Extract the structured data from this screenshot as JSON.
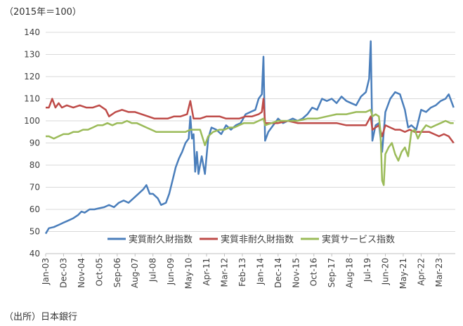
{
  "unit_label": "（2015年＝100）",
  "source_label": "（出所）日本銀行",
  "chart_data": {
    "type": "line",
    "ylim": [
      40,
      140
    ],
    "yticks": [
      40,
      50,
      60,
      70,
      80,
      90,
      100,
      110,
      120,
      130,
      140
    ],
    "x_start": "2003-01",
    "x_end": "2023-12",
    "x_tick_labels": [
      "Jan-03",
      "Dec-03",
      "Nov-04",
      "Oct-05",
      "Sep-06",
      "Aug-07",
      "Jul-08",
      "Jun-09",
      "May-10",
      "Apr-11",
      "Mar-12",
      "Feb-13",
      "Jan-14",
      "Dec-14",
      "Nov-15",
      "Oct-16",
      "Sep-17",
      "Aug-18",
      "Jul-19",
      "Jun-20",
      "May-21",
      "Apr-22",
      "Mar-23"
    ],
    "grid": "horizontal",
    "legend_position": "bottom-right-inside",
    "series": [
      {
        "name": "実質耐久財指数",
        "color": "#4a7ebb",
        "points": [
          [
            "2003-01",
            49
          ],
          [
            "2003-03",
            51.5
          ],
          [
            "2003-06",
            52
          ],
          [
            "2003-09",
            53
          ],
          [
            "2003-12",
            54
          ],
          [
            "2004-03",
            55
          ],
          [
            "2004-06",
            56
          ],
          [
            "2004-09",
            57.5
          ],
          [
            "2004-11",
            59
          ],
          [
            "2005-01",
            58.5
          ],
          [
            "2005-04",
            60
          ],
          [
            "2005-07",
            60
          ],
          [
            "2005-10",
            60.5
          ],
          [
            "2006-01",
            61
          ],
          [
            "2006-04",
            62
          ],
          [
            "2006-07",
            61
          ],
          [
            "2006-10",
            63
          ],
          [
            "2007-01",
            64
          ],
          [
            "2007-04",
            63
          ],
          [
            "2007-07",
            65
          ],
          [
            "2007-10",
            67
          ],
          [
            "2008-01",
            69
          ],
          [
            "2008-03",
            71
          ],
          [
            "2008-05",
            67
          ],
          [
            "2008-07",
            67
          ],
          [
            "2008-10",
            65
          ],
          [
            "2008-12",
            62
          ],
          [
            "2009-03",
            63
          ],
          [
            "2009-05",
            67
          ],
          [
            "2009-07",
            73
          ],
          [
            "2009-09",
            79
          ],
          [
            "2009-11",
            83
          ],
          [
            "2010-01",
            86
          ],
          [
            "2010-03",
            90
          ],
          [
            "2010-05",
            92
          ],
          [
            "2010-06",
            102
          ],
          [
            "2010-07",
            92
          ],
          [
            "2010-08",
            94
          ],
          [
            "2010-09",
            77
          ],
          [
            "2010-10",
            86
          ],
          [
            "2010-11",
            76
          ],
          [
            "2011-01",
            84
          ],
          [
            "2011-03",
            76
          ],
          [
            "2011-05",
            92
          ],
          [
            "2011-07",
            97
          ],
          [
            "2011-10",
            96
          ],
          [
            "2012-01",
            94
          ],
          [
            "2012-04",
            98
          ],
          [
            "2012-07",
            96
          ],
          [
            "2012-10",
            98
          ],
          [
            "2013-01",
            99
          ],
          [
            "2013-04",
            103
          ],
          [
            "2013-07",
            104
          ],
          [
            "2013-10",
            105
          ],
          [
            "2013-12",
            110
          ],
          [
            "2014-02",
            112
          ],
          [
            "2014-03",
            129
          ],
          [
            "2014-04",
            91
          ],
          [
            "2014-06",
            95
          ],
          [
            "2014-09",
            98
          ],
          [
            "2014-12",
            101
          ],
          [
            "2015-03",
            99
          ],
          [
            "2015-06",
            100
          ],
          [
            "2015-09",
            101
          ],
          [
            "2015-12",
            100
          ],
          [
            "2016-03",
            101
          ],
          [
            "2016-06",
            103
          ],
          [
            "2016-09",
            106
          ],
          [
            "2016-12",
            105
          ],
          [
            "2017-03",
            110
          ],
          [
            "2017-06",
            109
          ],
          [
            "2017-09",
            110
          ],
          [
            "2017-12",
            108
          ],
          [
            "2018-03",
            111
          ],
          [
            "2018-06",
            109
          ],
          [
            "2018-09",
            108
          ],
          [
            "2018-12",
            107
          ],
          [
            "2019-03",
            111
          ],
          [
            "2019-06",
            113
          ],
          [
            "2019-08",
            119
          ],
          [
            "2019-09",
            136
          ],
          [
            "2019-10",
            91
          ],
          [
            "2019-12",
            98
          ],
          [
            "2020-02",
            99
          ],
          [
            "2020-04",
            86
          ],
          [
            "2020-06",
            104
          ],
          [
            "2020-09",
            110
          ],
          [
            "2020-12",
            113
          ],
          [
            "2021-03",
            112
          ],
          [
            "2021-06",
            105
          ],
          [
            "2021-08",
            97
          ],
          [
            "2021-10",
            98
          ],
          [
            "2022-01",
            96
          ],
          [
            "2022-04",
            105
          ],
          [
            "2022-07",
            104
          ],
          [
            "2022-10",
            106
          ],
          [
            "2023-01",
            107
          ],
          [
            "2023-04",
            109
          ],
          [
            "2023-07",
            110
          ],
          [
            "2023-09",
            112
          ],
          [
            "2023-12",
            106
          ]
        ]
      },
      {
        "name": "実質非耐久財指数",
        "color": "#be4b48",
        "points": [
          [
            "2003-01",
            106
          ],
          [
            "2003-03",
            106
          ],
          [
            "2003-05",
            110
          ],
          [
            "2003-07",
            106
          ],
          [
            "2003-09",
            108
          ],
          [
            "2003-11",
            106
          ],
          [
            "2004-02",
            107
          ],
          [
            "2004-06",
            106
          ],
          [
            "2004-10",
            107
          ],
          [
            "2005-02",
            106
          ],
          [
            "2005-06",
            106
          ],
          [
            "2005-10",
            107
          ],
          [
            "2006-02",
            105
          ],
          [
            "2006-04",
            102
          ],
          [
            "2006-08",
            104
          ],
          [
            "2006-12",
            105
          ],
          [
            "2007-04",
            104
          ],
          [
            "2007-08",
            104
          ],
          [
            "2007-12",
            103
          ],
          [
            "2008-04",
            102
          ],
          [
            "2008-08",
            101
          ],
          [
            "2008-12",
            101
          ],
          [
            "2009-04",
            101
          ],
          [
            "2009-08",
            102
          ],
          [
            "2009-12",
            102
          ],
          [
            "2010-04",
            103
          ],
          [
            "2010-06",
            109
          ],
          [
            "2010-08",
            101
          ],
          [
            "2010-12",
            101
          ],
          [
            "2011-04",
            102
          ],
          [
            "2011-08",
            102
          ],
          [
            "2011-12",
            102
          ],
          [
            "2012-04",
            101
          ],
          [
            "2012-08",
            101
          ],
          [
            "2012-12",
            101
          ],
          [
            "2013-04",
            102
          ],
          [
            "2013-08",
            102
          ],
          [
            "2013-12",
            103
          ],
          [
            "2014-02",
            104
          ],
          [
            "2014-03",
            110
          ],
          [
            "2014-04",
            99
          ],
          [
            "2014-08",
            99
          ],
          [
            "2014-12",
            99
          ],
          [
            "2015-06",
            100
          ],
          [
            "2015-12",
            99
          ],
          [
            "2016-06",
            99
          ],
          [
            "2016-12",
            99
          ],
          [
            "2017-06",
            99
          ],
          [
            "2017-12",
            99
          ],
          [
            "2018-06",
            98
          ],
          [
            "2018-12",
            98
          ],
          [
            "2019-06",
            98
          ],
          [
            "2019-09",
            102
          ],
          [
            "2019-10",
            96
          ],
          [
            "2019-12",
            97
          ],
          [
            "2020-02",
            98
          ],
          [
            "2020-04",
            93
          ],
          [
            "2020-06",
            98
          ],
          [
            "2020-09",
            97
          ],
          [
            "2020-12",
            96
          ],
          [
            "2021-03",
            96
          ],
          [
            "2021-06",
            95
          ],
          [
            "2021-09",
            96
          ],
          [
            "2021-12",
            95
          ],
          [
            "2022-03",
            95
          ],
          [
            "2022-06",
            95
          ],
          [
            "2022-09",
            95
          ],
          [
            "2022-12",
            94
          ],
          [
            "2023-03",
            93
          ],
          [
            "2023-06",
            94
          ],
          [
            "2023-09",
            93
          ],
          [
            "2023-12",
            90
          ]
        ]
      },
      {
        "name": "実質サービス指数",
        "color": "#9bbb59",
        "points": [
          [
            "2003-01",
            93
          ],
          [
            "2003-03",
            93
          ],
          [
            "2003-06",
            92
          ],
          [
            "2003-09",
            93
          ],
          [
            "2003-12",
            94
          ],
          [
            "2004-03",
            94
          ],
          [
            "2004-06",
            95
          ],
          [
            "2004-09",
            95
          ],
          [
            "2004-12",
            96
          ],
          [
            "2005-03",
            96
          ],
          [
            "2005-06",
            97
          ],
          [
            "2005-09",
            98
          ],
          [
            "2005-12",
            98
          ],
          [
            "2006-03",
            99
          ],
          [
            "2006-06",
            98
          ],
          [
            "2006-09",
            99
          ],
          [
            "2006-12",
            99
          ],
          [
            "2007-03",
            100
          ],
          [
            "2007-06",
            99
          ],
          [
            "2007-09",
            99
          ],
          [
            "2007-12",
            98
          ],
          [
            "2008-03",
            97
          ],
          [
            "2008-06",
            96
          ],
          [
            "2008-09",
            95
          ],
          [
            "2008-12",
            95
          ],
          [
            "2009-03",
            95
          ],
          [
            "2009-06",
            95
          ],
          [
            "2009-09",
            95
          ],
          [
            "2009-12",
            95
          ],
          [
            "2010-03",
            95
          ],
          [
            "2010-06",
            96
          ],
          [
            "2010-09",
            96
          ],
          [
            "2010-12",
            96
          ],
          [
            "2011-03",
            89
          ],
          [
            "2011-05",
            93
          ],
          [
            "2011-08",
            95
          ],
          [
            "2011-12",
            96
          ],
          [
            "2012-03",
            96
          ],
          [
            "2012-06",
            97
          ],
          [
            "2012-09",
            97
          ],
          [
            "2012-12",
            98
          ],
          [
            "2013-03",
            99
          ],
          [
            "2013-06",
            99
          ],
          [
            "2013-09",
            99
          ],
          [
            "2013-12",
            100
          ],
          [
            "2014-03",
            101
          ],
          [
            "2014-04",
            98
          ],
          [
            "2014-08",
            99
          ],
          [
            "2014-12",
            100
          ],
          [
            "2015-06",
            100
          ],
          [
            "2015-12",
            100
          ],
          [
            "2016-06",
            101
          ],
          [
            "2016-12",
            101
          ],
          [
            "2017-06",
            102
          ],
          [
            "2017-12",
            103
          ],
          [
            "2018-06",
            103
          ],
          [
            "2018-12",
            104
          ],
          [
            "2019-06",
            104
          ],
          [
            "2019-09",
            105
          ],
          [
            "2019-10",
            102
          ],
          [
            "2019-12",
            103
          ],
          [
            "2020-02",
            102
          ],
          [
            "2020-03",
            95
          ],
          [
            "2020-04",
            73
          ],
          [
            "2020-05",
            71
          ],
          [
            "2020-06",
            85
          ],
          [
            "2020-08",
            88
          ],
          [
            "2020-10",
            90
          ],
          [
            "2020-12",
            85
          ],
          [
            "2021-02",
            82
          ],
          [
            "2021-04",
            86
          ],
          [
            "2021-06",
            88
          ],
          [
            "2021-08",
            84
          ],
          [
            "2021-10",
            95
          ],
          [
            "2021-12",
            96
          ],
          [
            "2022-02",
            92
          ],
          [
            "2022-04",
            95
          ],
          [
            "2022-07",
            98
          ],
          [
            "2022-10",
            97
          ],
          [
            "2023-01",
            98
          ],
          [
            "2023-04",
            99
          ],
          [
            "2023-07",
            100
          ],
          [
            "2023-10",
            99
          ],
          [
            "2023-12",
            99
          ]
        ]
      }
    ]
  }
}
